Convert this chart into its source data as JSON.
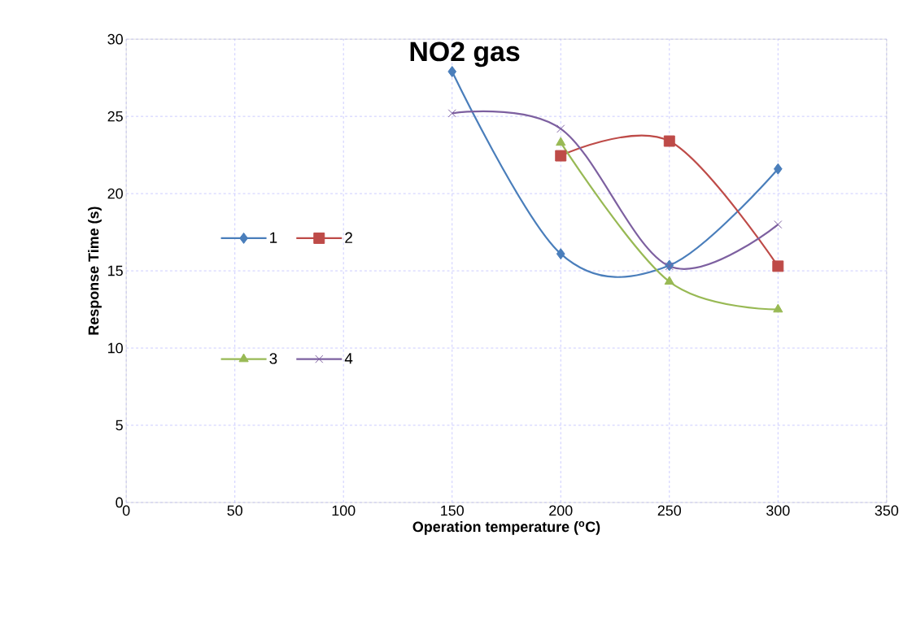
{
  "chart_data": {
    "type": "line",
    "title": "NO2 gas",
    "xlabel": "Operation temperature ($^{o}$C)",
    "ylabel": "Response Time (s)",
    "x": [
      150,
      200,
      250,
      300
    ],
    "series": [
      {
        "name": "1",
        "color": "#4a7ebb",
        "marker": "diamond",
        "values": [
          27.9,
          16.1,
          15.35,
          21.6
        ]
      },
      {
        "name": "2",
        "color": "#be4b48",
        "marker": "square",
        "x": [
          200,
          250,
          300
        ],
        "values": [
          22.45,
          23.4,
          15.3
        ]
      },
      {
        "name": "3",
        "color": "#98b954",
        "marker": "triangle",
        "x": [
          200,
          250,
          300
        ],
        "values": [
          23.3,
          14.3,
          12.5
        ]
      },
      {
        "name": "4",
        "color": "#7d60a0",
        "marker": "cross",
        "values": [
          25.2,
          24.2,
          15.3,
          18.0
        ]
      }
    ],
    "xlim": [
      0,
      350
    ],
    "xticks": [
      0,
      50,
      100,
      150,
      200,
      250,
      300,
      350
    ],
    "ylim": [
      0,
      30
    ],
    "yticks": [
      0,
      5,
      10,
      15,
      20,
      25,
      30
    ],
    "grid": true,
    "legend": "left",
    "line_style": "solid"
  }
}
